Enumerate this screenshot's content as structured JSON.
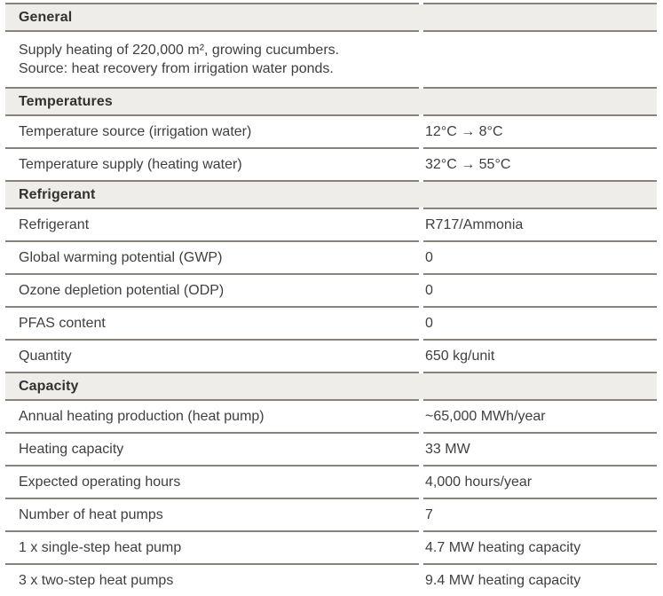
{
  "colors": {
    "header_bg": "#eeedea",
    "line": "#87827b",
    "text": "#403f3d",
    "header_text": "#333231"
  },
  "table": {
    "sections": [
      {
        "title": "General",
        "description_lines": [
          "Supply heating of 220,000 m², growing cucumbers.",
          "Source: heat recovery from irrigation water ponds."
        ],
        "rows": []
      },
      {
        "title": "Temperatures",
        "rows": [
          {
            "label": "Temperature source (irrigation water)",
            "value": "12°C → 8°C"
          },
          {
            "label": "Temperature supply (heating water)",
            "value": "32°C → 55°C"
          }
        ]
      },
      {
        "title": "Refrigerant",
        "rows": [
          {
            "label": "Refrigerant",
            "value": "R717/Ammonia"
          },
          {
            "label": "Global warming potential (GWP)",
            "value": "0"
          },
          {
            "label": "Ozone depletion potential (ODP)",
            "value": "0"
          },
          {
            "label": "PFAS content",
            "value": "0"
          },
          {
            "label": "Quantity",
            "value": "650 kg/unit"
          }
        ]
      },
      {
        "title": "Capacity",
        "rows": [
          {
            "label": "Annual heating production (heat pump)",
            "value": "~65,000 MWh/year"
          },
          {
            "label": "Heating capacity",
            "value": "33 MW"
          },
          {
            "label": "Expected operating hours",
            "value": "4,000 hours/year"
          },
          {
            "label": "Number of heat pumps",
            "value": "7"
          },
          {
            "label": "1 x single-step heat pump",
            "value": "4.7 MW heating capacity"
          },
          {
            "label": "3 x two-step heat pumps",
            "value": "9.4 MW heating capacity"
          }
        ]
      }
    ]
  }
}
